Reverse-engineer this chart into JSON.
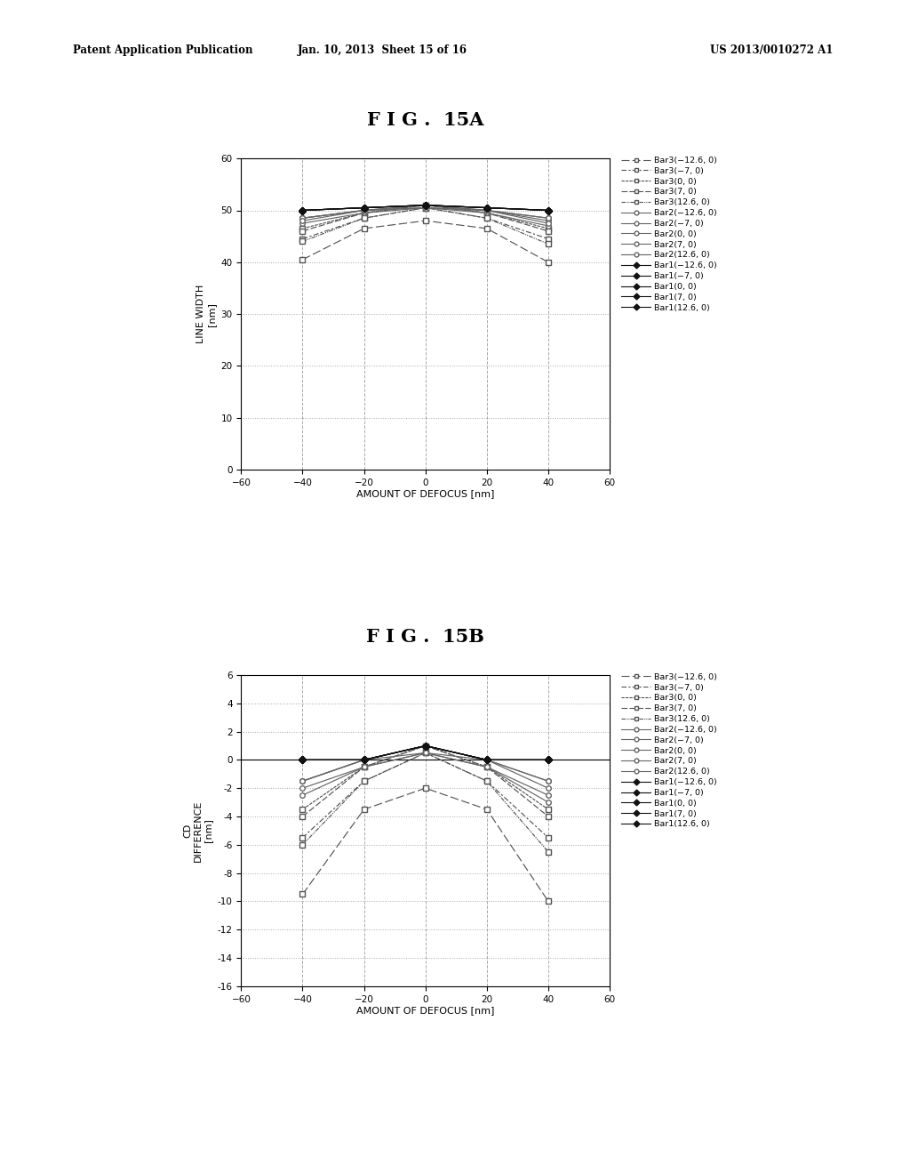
{
  "header_left": "Patent Application Publication",
  "header_mid": "Jan. 10, 2013  Sheet 15 of 16",
  "header_right": "US 2013/0010272 A1",
  "fig15a_title": "F I G .  15A",
  "fig15b_title": "F I G .  15B",
  "xlabel": "AMOUNT OF DEFOCUS [nm]",
  "ylabel_a": "LINE WIDTH\n[nm]",
  "ylabel_b": "CD\nDIFFERENCE\n[nm]",
  "x_values": [
    -40,
    -20,
    0,
    20,
    40
  ],
  "xlim": [
    -60,
    60
  ],
  "xticks": [
    -60,
    -40,
    -20,
    0,
    20,
    40,
    60
  ],
  "xtick_labels": [
    "−60",
    "−40",
    "−20",
    "0",
    "20",
    "40",
    "60"
  ],
  "ylim_a": [
    0,
    60
  ],
  "yticks_a": [
    0,
    10,
    20,
    30,
    40,
    50,
    60
  ],
  "ylim_b": [
    -16,
    6
  ],
  "yticks_b": [
    -16,
    -14,
    -12,
    -10,
    -8,
    -6,
    -4,
    -2,
    0,
    2,
    4,
    6
  ],
  "legend_labels_a": [
    "Bar3(−12.6, 0)",
    "Bar3(−7, 0)",
    "Bar3(0, 0)",
    "Bar3(7, 0)",
    "Bar3(12.6, 0)",
    "Bar2(−12.6, 0)",
    "Bar2(−7, 0)",
    "Bar2(0, 0)",
    "Bar2(7, 0)",
    "Bar2(12.6, 0)",
    "Bar1(−12.6, 0)",
    "Bar1(−7, 0)",
    "Bar1(0, 0)",
    "Bar1(7, 0)",
    "Bar1(12.6, 0)"
  ],
  "legend_labels_b": [
    "Bar3(−12.6, 0)",
    "Bar3(−7, 0)",
    "Bar3(0, 0)",
    "Bar3(7, 0)",
    "Bar3(12.6, 0)",
    "Bar2(−12.6, 0)",
    "Bar2(−7, 0)",
    "Bar2(0, 0)",
    "Bar2(7, 0)",
    "Bar2(12.6, 0)",
    "Bar1(−12.6, 0)",
    "Bar1(−7, 0)",
    "Bar1(0, 0)",
    "Bar1(7, 0)",
    "Bar1(12.6, 0)"
  ],
  "series_a": {
    "Bar3_n12.6": [
      40.5,
      46.5,
      48.0,
      46.5,
      40.0
    ],
    "Bar3_n7": [
      44.5,
      48.5,
      50.5,
      48.5,
      44.5
    ],
    "Bar3_0": [
      46.5,
      49.5,
      51.0,
      49.5,
      46.5
    ],
    "Bar3_7": [
      46.0,
      49.5,
      51.0,
      49.5,
      46.0
    ],
    "Bar3_12.6": [
      44.0,
      48.5,
      50.5,
      48.5,
      43.5
    ],
    "Bar2_n12.6": [
      47.5,
      49.5,
      50.5,
      49.5,
      47.0
    ],
    "Bar2_n7": [
      48.5,
      50.0,
      50.5,
      50.0,
      48.0
    ],
    "Bar2_0": [
      48.5,
      50.0,
      51.0,
      50.0,
      48.5
    ],
    "Bar2_7": [
      48.5,
      50.0,
      51.0,
      50.0,
      48.5
    ],
    "Bar2_12.6": [
      48.0,
      50.0,
      50.5,
      50.0,
      47.5
    ],
    "Bar1_n12.6": [
      50.0,
      50.5,
      51.0,
      50.5,
      50.0
    ],
    "Bar1_n7": [
      50.0,
      50.5,
      51.0,
      50.5,
      50.0
    ],
    "Bar1_0": [
      50.0,
      50.5,
      51.0,
      50.5,
      50.0
    ],
    "Bar1_7": [
      50.0,
      50.5,
      51.0,
      50.5,
      50.0
    ],
    "Bar1_12.6": [
      50.0,
      50.5,
      51.0,
      50.5,
      50.0
    ]
  },
  "series_b": {
    "Bar3_n12.6": [
      -9.5,
      -3.5,
      -2.0,
      -3.5,
      -10.0
    ],
    "Bar3_n7": [
      -5.5,
      -1.5,
      0.5,
      -1.5,
      -5.5
    ],
    "Bar3_0": [
      -3.5,
      -0.5,
      1.0,
      -0.5,
      -3.5
    ],
    "Bar3_7": [
      -4.0,
      -0.5,
      1.0,
      -0.5,
      -4.0
    ],
    "Bar3_12.6": [
      -6.0,
      -1.5,
      0.5,
      -1.5,
      -6.5
    ],
    "Bar2_n12.6": [
      -2.5,
      -0.5,
      0.5,
      -0.5,
      -3.0
    ],
    "Bar2_n7": [
      -1.5,
      0.0,
      0.5,
      0.0,
      -2.0
    ],
    "Bar2_0": [
      -1.5,
      0.0,
      1.0,
      0.0,
      -1.5
    ],
    "Bar2_7": [
      -1.5,
      0.0,
      1.0,
      0.0,
      -1.5
    ],
    "Bar2_12.6": [
      -2.0,
      -0.5,
      0.5,
      -0.5,
      -2.5
    ],
    "Bar1_n12.6": [
      0.0,
      0.0,
      1.0,
      0.0,
      0.0
    ],
    "Bar1_n7": [
      0.0,
      0.0,
      1.0,
      0.0,
      0.0
    ],
    "Bar1_0": [
      0.0,
      0.0,
      1.0,
      0.0,
      0.0
    ],
    "Bar1_7": [
      0.0,
      0.0,
      1.0,
      0.0,
      0.0
    ],
    "Bar1_12.6": [
      0.0,
      0.0,
      1.0,
      0.0,
      0.0
    ]
  },
  "background_color": "#ffffff"
}
